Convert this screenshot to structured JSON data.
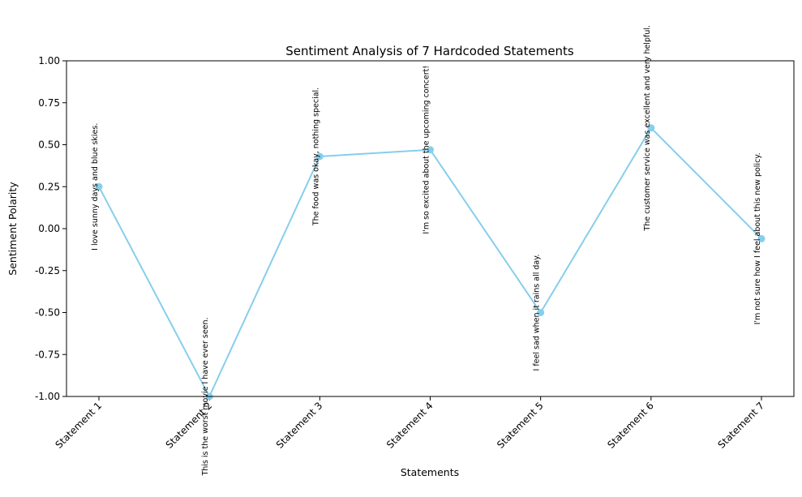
{
  "chart_data": {
    "type": "line",
    "title": "Sentiment Analysis of 7 Hardcoded Statements",
    "xlabel": "Statements",
    "ylabel": "Sentiment Polarity",
    "ylim": [
      -1.0,
      1.0
    ],
    "yticks": [
      "-1.00",
      "-0.75",
      "-0.50",
      "-0.25",
      "0.00",
      "0.25",
      "0.50",
      "0.75",
      "1.00"
    ],
    "categories": [
      "Statement 1",
      "Statement 2",
      "Statement 3",
      "Statement 4",
      "Statement 5",
      "Statement 6",
      "Statement 7"
    ],
    "values": [
      0.25,
      -1.0,
      0.43,
      0.47,
      -0.5,
      0.6,
      -0.06
    ],
    "annotations": [
      "I love sunny days and blue skies.",
      "This is the worst movie I have ever seen.",
      "The food was okay, nothing special.",
      "I'm so excited about the upcoming concert!",
      "I feel sad when it rains all day.",
      "The customer service was excellent and very helpful.",
      "I'm not sure how I feel about this new policy."
    ],
    "line_color": "#87CEEB",
    "grid": false,
    "legend": "none"
  }
}
